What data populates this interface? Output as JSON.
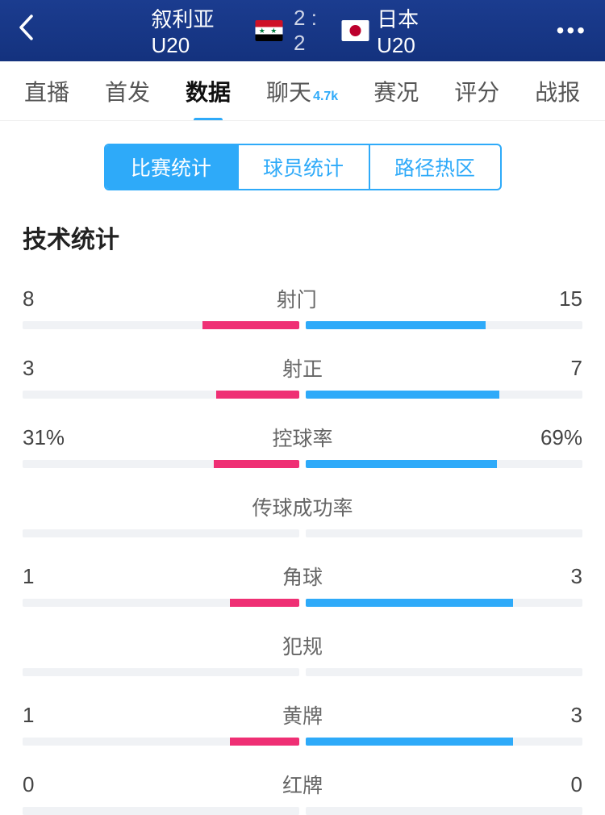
{
  "header": {
    "home_team": "叙利亚 U20",
    "away_team": "日本 U20",
    "score": "2 : 2"
  },
  "nav": {
    "tabs": [
      {
        "label": "直播",
        "active": false
      },
      {
        "label": "首发",
        "active": false
      },
      {
        "label": "数据",
        "active": true
      },
      {
        "label": "聊天",
        "active": false,
        "badge": "4.7k"
      },
      {
        "label": "赛况",
        "active": false
      },
      {
        "label": "评分",
        "active": false
      },
      {
        "label": "战报",
        "active": false
      }
    ]
  },
  "segments": {
    "items": [
      {
        "label": "比赛统计",
        "active": true
      },
      {
        "label": "球员统计",
        "active": false
      },
      {
        "label": "路径热区",
        "active": false
      }
    ]
  },
  "section_title": "技术统计",
  "colors": {
    "home_bar": "#ef2f74",
    "away_bar": "#2eaaf9",
    "bar_bg": "#f0f2f5",
    "accent": "#2eaaf9",
    "header_bg": "#1b3c8f"
  },
  "stats": [
    {
      "label": "射门",
      "home": "8",
      "away": "15",
      "home_pct": 35,
      "away_pct": 65
    },
    {
      "label": "射正",
      "home": "3",
      "away": "7",
      "home_pct": 30,
      "away_pct": 70
    },
    {
      "label": "控球率",
      "home": "31%",
      "away": "69%",
      "home_pct": 31,
      "away_pct": 69
    },
    {
      "label": "传球成功率",
      "home": "",
      "away": "",
      "home_pct": 0,
      "away_pct": 0
    },
    {
      "label": "角球",
      "home": "1",
      "away": "3",
      "home_pct": 25,
      "away_pct": 75
    },
    {
      "label": "犯规",
      "home": "",
      "away": "",
      "home_pct": 0,
      "away_pct": 0
    },
    {
      "label": "黄牌",
      "home": "1",
      "away": "3",
      "home_pct": 25,
      "away_pct": 75
    },
    {
      "label": "红牌",
      "home": "0",
      "away": "0",
      "home_pct": 0,
      "away_pct": 0
    }
  ]
}
